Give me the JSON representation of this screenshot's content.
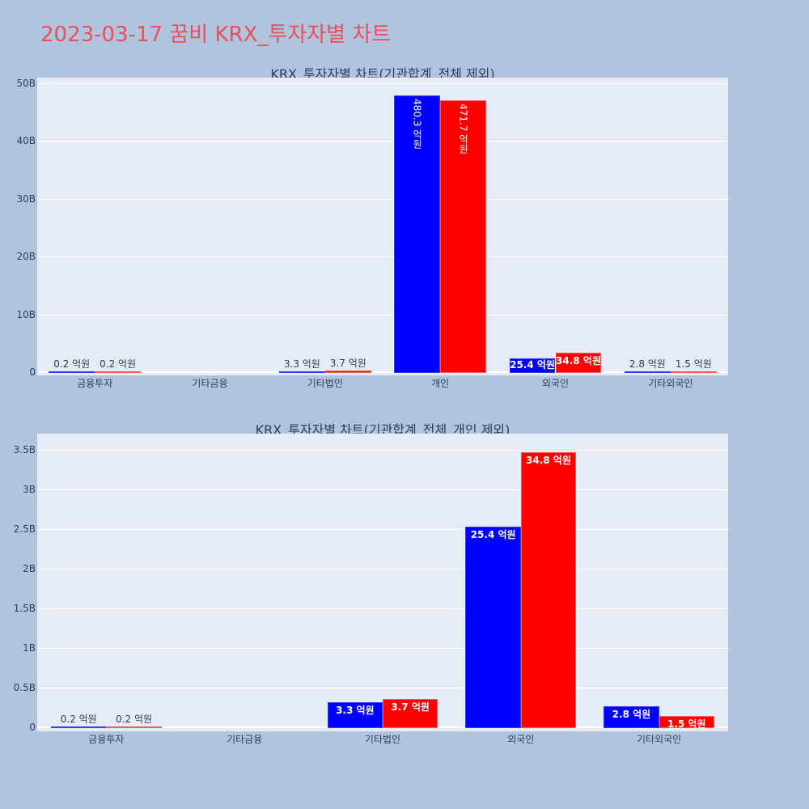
{
  "page": {
    "title": "2023-03-17 꿈비 KRX_투자자별 차트",
    "title_color": "#e8505b",
    "background": "#b0c4de"
  },
  "colors": {
    "buy": "#0000ff",
    "sell": "#ff0000",
    "plot_bg": "#e5ecf6",
    "text": "#2a3f5f"
  },
  "chart_data": [
    {
      "type": "bar",
      "title": "KRX_투자자별 차트(기관합계_전체 제외)",
      "categories": [
        "금융투자",
        "기타금융",
        "기타법인",
        "개인",
        "외국인",
        "기타외국인"
      ],
      "series": [
        {
          "name": "blue",
          "color": "#0000ff",
          "values": [
            0.02,
            0,
            0.33,
            48.03,
            2.54,
            0.28
          ],
          "labels": [
            "0.2 억원",
            "",
            "3.3 억원",
            "480.3 억원",
            "25.4 억원",
            "2.8 억원"
          ]
        },
        {
          "name": "red",
          "color": "#ff0000",
          "values": [
            0.02,
            0,
            0.37,
            47.17,
            3.48,
            0.15
          ],
          "labels": [
            "0.2 억원",
            "",
            "3.7 억원",
            "471.7 억원",
            "34.8 억원",
            "1.5 억원"
          ]
        }
      ],
      "yticks": [
        0,
        10,
        20,
        30,
        40,
        50
      ],
      "ytick_labels": [
        "0",
        "10B",
        "20B",
        "30B",
        "40B",
        "50B"
      ],
      "ylim": [
        0,
        50.5
      ],
      "xlabel": "",
      "ylabel": "",
      "grid": true,
      "legend": "none",
      "units": "B (billion KRW)"
    },
    {
      "type": "bar",
      "title": "KRX_투자자별 차트(기관합계_전체_개인 제외)",
      "categories": [
        "금융투자",
        "기타금융",
        "기타법인",
        "외국인",
        "기타외국인"
      ],
      "series": [
        {
          "name": "blue",
          "color": "#0000ff",
          "values": [
            0.02,
            0,
            0.33,
            2.54,
            0.28
          ],
          "labels": [
            "0.2 억원",
            "",
            "3.3 억원",
            "25.4 억원",
            "2.8 억원"
          ]
        },
        {
          "name": "red",
          "color": "#ff0000",
          "values": [
            0.02,
            0,
            0.37,
            3.48,
            0.15
          ],
          "labels": [
            "0.2 억원",
            "",
            "3.7 억원",
            "34.8 억원",
            "1.5 억원"
          ]
        }
      ],
      "yticks": [
        0,
        0.5,
        1,
        1.5,
        2,
        2.5,
        3,
        3.5
      ],
      "ytick_labels": [
        "0",
        "0.5B",
        "1B",
        "1.5B",
        "2B",
        "2.5B",
        "3B",
        "3.5B"
      ],
      "ylim": [
        0,
        3.7
      ],
      "xlabel": "",
      "ylabel": "",
      "grid": true,
      "legend": "none",
      "units": "B (billion KRW)"
    }
  ]
}
